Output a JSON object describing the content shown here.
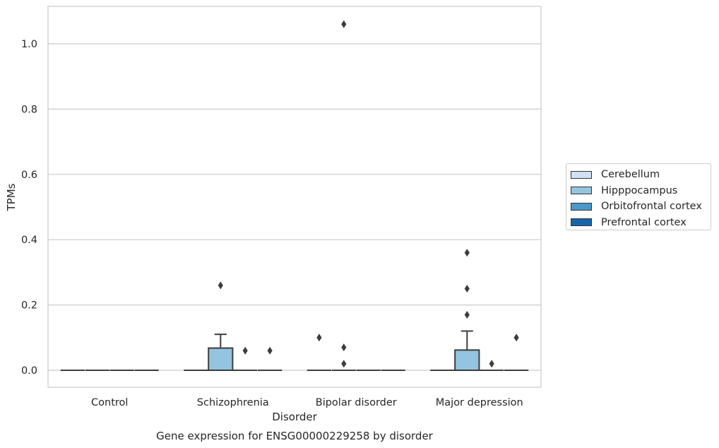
{
  "chart_data": {
    "type": "boxplot",
    "title": "Gene expression for ENSG00000229258 by disorder",
    "xlabel": "Disorder",
    "ylabel": "TPMs",
    "ylim": [
      -0.05,
      1.12
    ],
    "yticks": [
      "0.0",
      "0.2",
      "0.4",
      "0.6",
      "0.8",
      "1.0"
    ],
    "grid": "horizontal",
    "legend_placement": "center-right-outside",
    "categories": [
      "Control",
      "Schizophrenia",
      "Bipolar disorder",
      "Major depression"
    ],
    "series": [
      {
        "name": "Cerebellum",
        "color": "#d0e1f1",
        "boxes": [
          {
            "min": 0,
            "q1": 0,
            "median": 0,
            "q3": 0,
            "max": 0,
            "outliers": []
          },
          {
            "min": 0,
            "q1": 0,
            "median": 0,
            "q3": 0,
            "max": 0,
            "outliers": []
          },
          {
            "min": 0,
            "q1": 0,
            "median": 0,
            "q3": 0,
            "max": 0,
            "outliers": [
              0.1
            ]
          },
          {
            "min": 0,
            "q1": 0,
            "median": 0,
            "q3": 0,
            "max": 0,
            "outliers": []
          }
        ]
      },
      {
        "name": "Hipppocampus",
        "color": "#94c4df",
        "boxes": [
          {
            "min": 0,
            "q1": 0,
            "median": 0,
            "q3": 0,
            "max": 0,
            "outliers": []
          },
          {
            "min": 0,
            "q1": 0,
            "median": 0,
            "q3": 0.068,
            "max": 0.11,
            "outliers": [
              0.26
            ]
          },
          {
            "min": 0,
            "q1": 0,
            "median": 0,
            "q3": 0,
            "max": 0,
            "outliers": [
              1.06,
              0.07,
              0.02
            ]
          },
          {
            "min": 0,
            "q1": 0,
            "median": 0,
            "q3": 0.062,
            "max": 0.12,
            "outliers": [
              0.36,
              0.25,
              0.17
            ]
          }
        ]
      },
      {
        "name": "Orbitofrontal cortex",
        "color": "#4a98c9",
        "boxes": [
          {
            "min": 0,
            "q1": 0,
            "median": 0,
            "q3": 0,
            "max": 0,
            "outliers": []
          },
          {
            "min": 0,
            "q1": 0,
            "median": 0,
            "q3": 0,
            "max": 0,
            "outliers": [
              0.06
            ]
          },
          {
            "min": 0,
            "q1": 0,
            "median": 0,
            "q3": 0,
            "max": 0,
            "outliers": []
          },
          {
            "min": 0,
            "q1": 0,
            "median": 0,
            "q3": 0,
            "max": 0,
            "outliers": [
              0.02
            ]
          }
        ]
      },
      {
        "name": "Prefrontal cortex",
        "color": "#1764ab",
        "boxes": [
          {
            "min": 0,
            "q1": 0,
            "median": 0,
            "q3": 0,
            "max": 0,
            "outliers": []
          },
          {
            "min": 0,
            "q1": 0,
            "median": 0,
            "q3": 0,
            "max": 0,
            "outliers": [
              0.06
            ]
          },
          {
            "min": 0,
            "q1": 0,
            "median": 0,
            "q3": 0,
            "max": 0,
            "outliers": []
          },
          {
            "min": 0,
            "q1": 0,
            "median": 0,
            "q3": 0,
            "max": 0,
            "outliers": [
              0.1
            ]
          }
        ]
      }
    ]
  }
}
